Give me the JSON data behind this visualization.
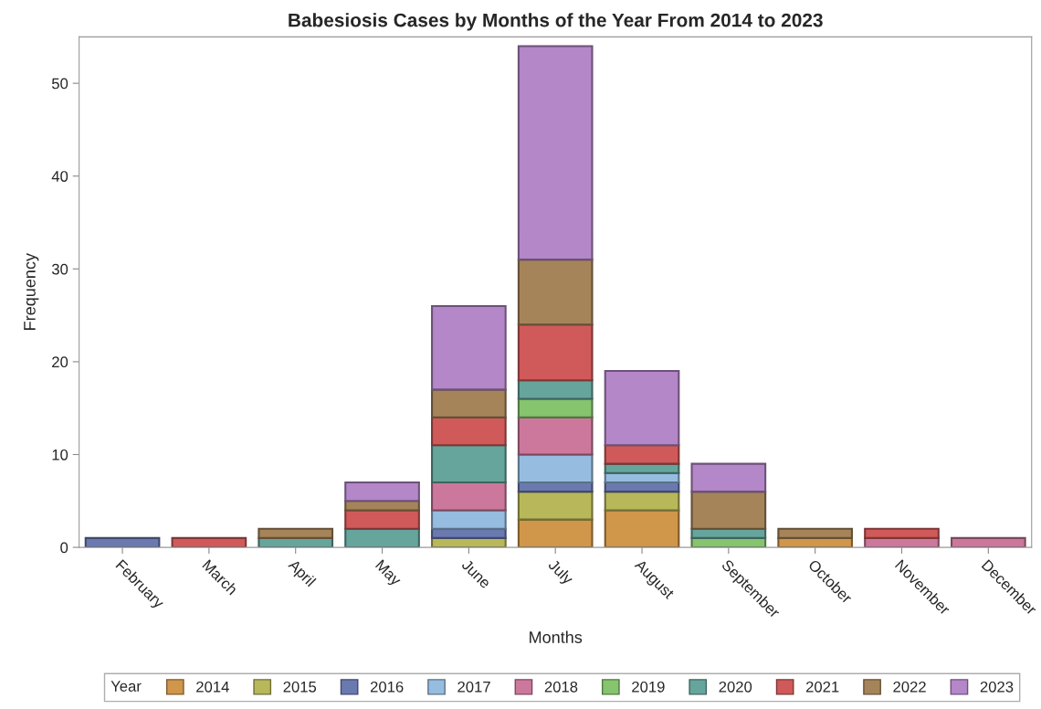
{
  "chart_data": {
    "type": "bar",
    "title": "Babesiosis Cases by Months of the Year From 2014 to 2023",
    "xlabel": "Months",
    "ylabel": "Frequency",
    "legend_title": "Year",
    "stacked": true,
    "legend": "bottom",
    "grid": false,
    "categories": [
      "February",
      "March",
      "April",
      "May",
      "June",
      "July",
      "August",
      "September",
      "October",
      "November",
      "December"
    ],
    "ylim": [
      0,
      55
    ],
    "yticks": [
      0,
      10,
      20,
      30,
      40,
      50
    ],
    "series": [
      {
        "name": "2014",
        "color": "#d0964a",
        "values": [
          0,
          0,
          0,
          0,
          0,
          3,
          4,
          0,
          1,
          0,
          0
        ]
      },
      {
        "name": "2015",
        "color": "#b8b85a",
        "values": [
          0,
          0,
          0,
          0,
          1,
          3,
          2,
          0,
          0,
          0,
          0
        ]
      },
      {
        "name": "2016",
        "color": "#6a7ab0",
        "values": [
          1,
          0,
          0,
          0,
          1,
          1,
          1,
          0,
          0,
          0,
          0
        ]
      },
      {
        "name": "2017",
        "color": "#96bce0",
        "values": [
          0,
          0,
          0,
          0,
          2,
          3,
          1,
          0,
          0,
          0,
          0
        ]
      },
      {
        "name": "2018",
        "color": "#cc789c",
        "values": [
          0,
          0,
          0,
          0,
          3,
          4,
          0,
          0,
          0,
          1,
          1
        ]
      },
      {
        "name": "2019",
        "color": "#86c46e",
        "values": [
          0,
          0,
          0,
          0,
          0,
          2,
          0,
          1,
          0,
          0,
          0
        ]
      },
      {
        "name": "2020",
        "color": "#66a59c",
        "values": [
          0,
          0,
          1,
          2,
          4,
          2,
          1,
          1,
          0,
          0,
          0
        ]
      },
      {
        "name": "2021",
        "color": "#d05a5a",
        "values": [
          0,
          1,
          0,
          2,
          3,
          6,
          2,
          0,
          0,
          1,
          0
        ]
      },
      {
        "name": "2022",
        "color": "#a6845a",
        "values": [
          0,
          0,
          1,
          1,
          3,
          7,
          0,
          4,
          1,
          0,
          0
        ]
      },
      {
        "name": "2023",
        "color": "#b487c8",
        "values": [
          0,
          0,
          0,
          2,
          9,
          23,
          8,
          3,
          0,
          0,
          0
        ]
      }
    ]
  }
}
